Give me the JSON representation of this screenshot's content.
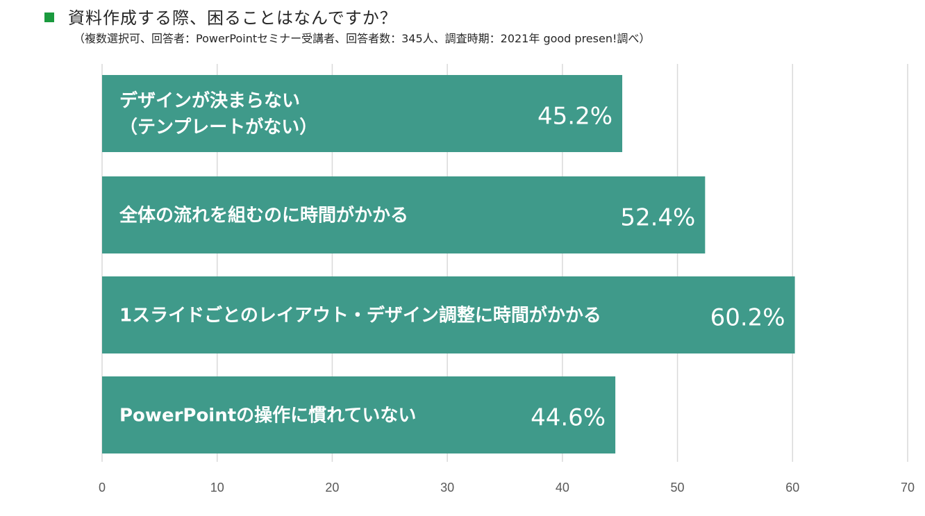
{
  "header": {
    "marker": "■",
    "title": "資料作成する際、困ることはなんですか？",
    "subtitle": "（複数選択可、回答者：PowerPointセミナー受講者、回答者数：345人、調査時期：2021年 good presen!調べ）"
  },
  "colors": {
    "bar": "#3f9a8a",
    "marker": "#1a9a3e",
    "grid": "#d9d9d9",
    "text_on_bar": "#ffffff",
    "tick_text": "#595959"
  },
  "chart_data": {
    "type": "bar",
    "orientation": "horizontal",
    "categories": [
      [
        "デザインが決まらない",
        "（テンプレートがない）"
      ],
      [
        "全体の流れを組むのに時間がかかる"
      ],
      [
        "1スライドごとのレイアウト・デザイン調整に時間がかかる"
      ],
      [
        "PowerPointの操作に慣れていない"
      ]
    ],
    "values": [
      45.2,
      52.4,
      60.2,
      44.6
    ],
    "value_labels": [
      "45.2%",
      "52.4%",
      "60.2%",
      "44.6%"
    ],
    "xlim": [
      0,
      70
    ],
    "xticks": [
      0,
      10,
      20,
      30,
      40,
      50,
      60,
      70
    ],
    "grid": true,
    "legend": "none"
  }
}
